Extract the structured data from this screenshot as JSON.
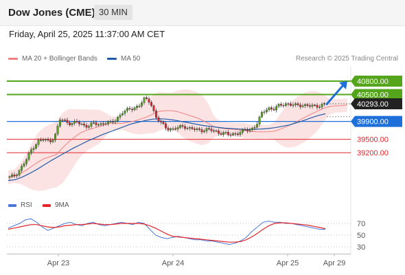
{
  "header": {
    "title": "Dow Jones (CME)",
    "timeframe": "30 MIN"
  },
  "datetime": "Friday, April 25, 2025 11:37:00 AM CET",
  "legend": {
    "ma20_label": "MA 20 + Bollinger Bands",
    "ma50_label": "MA 50",
    "credit": "Research © 2025 Trading Central"
  },
  "colors": {
    "bullish": "#55a51c",
    "bearish": "#e2232a",
    "pivot": "#1e6fd9",
    "last": "#222222",
    "ma20": "#f08080",
    "ma50": "#1e5aa8",
    "band": "#fbd9d9",
    "rsi": "#4a78d8",
    "rsi_ma": "#e2232a"
  },
  "chart_data": [
    {
      "type": "candlestick",
      "x_ticks": [
        "Apr 23",
        "Apr 24",
        "Apr 25",
        "Apr 29"
      ],
      "levels": [
        {
          "value": 40800,
          "label": "40800.00",
          "kind": "resistance"
        },
        {
          "value": 40500,
          "label": "40500.00",
          "kind": "resistance"
        },
        {
          "value": 40293,
          "label": "40293.00",
          "kind": "last"
        },
        {
          "value": 39900,
          "label": "39900.00",
          "kind": "pivot"
        },
        {
          "value": 39500,
          "label": "39500.00",
          "kind": "support"
        },
        {
          "value": 39200,
          "label": "39200.00",
          "kind": "support"
        }
      ],
      "arrow": {
        "direction": "up",
        "from": 40293,
        "to": 40800
      },
      "close_series": [
        38650,
        38700,
        38850,
        39050,
        39300,
        39450,
        39500,
        39450,
        39550,
        39950,
        39900,
        39850,
        39880,
        39820,
        39800,
        39850,
        39830,
        39880,
        39860,
        39950,
        40100,
        40150,
        40200,
        40250,
        40400,
        40350,
        40000,
        39850,
        39750,
        39720,
        39760,
        39800,
        39740,
        39720,
        39700,
        39720,
        39700,
        39660,
        39640,
        39600,
        39620,
        39660,
        39700,
        39720,
        39850,
        40100,
        40200,
        40180,
        40250,
        40300,
        40280,
        40250,
        40270,
        40260,
        40230,
        40250,
        40293
      ],
      "ma50": [
        38580,
        38600,
        38660,
        38740,
        38830,
        38930,
        39030,
        39120,
        39210,
        39300,
        39380,
        39460,
        39530,
        39600,
        39660,
        39720,
        39780,
        39840,
        39880,
        39920,
        39950,
        39960,
        39950,
        39930,
        39900,
        39870,
        39840,
        39810,
        39790,
        39770,
        39750,
        39740,
        39730,
        39720,
        39720,
        39730,
        39740,
        39760,
        39790,
        39820,
        39870,
        39920,
        39980,
        40030,
        40070
      ],
      "bollinger_band_visible": true
    },
    {
      "type": "line",
      "title": "RSI",
      "series": [
        {
          "name": "RSI"
        },
        {
          "name": "9MA"
        }
      ],
      "y_ticks": [
        70,
        50,
        30
      ],
      "ylim": [
        20,
        85
      ],
      "rsi": [
        62,
        66,
        70,
        76,
        78,
        72,
        64,
        58,
        62,
        66,
        70,
        72,
        68,
        66,
        70,
        72,
        68,
        66,
        68,
        70,
        72,
        70,
        68,
        72,
        70,
        60,
        50,
        46,
        44,
        46,
        48,
        46,
        44,
        42,
        42,
        40,
        40,
        38,
        36,
        34,
        36,
        40,
        46,
        56,
        64,
        72,
        74,
        72,
        72,
        70,
        70,
        68,
        66,
        64,
        62,
        60,
        60
      ],
      "ma9": [
        60,
        62,
        64,
        66,
        68,
        68,
        66,
        64,
        63,
        64,
        66,
        67,
        68,
        68,
        69,
        70,
        69,
        68,
        68,
        69,
        70,
        70,
        70,
        70,
        69,
        66,
        62,
        57,
        52,
        48,
        47,
        46,
        45,
        44,
        43,
        42,
        41,
        40,
        39,
        38,
        38,
        39,
        42,
        47,
        53,
        60,
        66,
        70,
        71,
        71,
        70,
        69,
        68,
        67,
        65,
        63,
        61
      ]
    }
  ]
}
